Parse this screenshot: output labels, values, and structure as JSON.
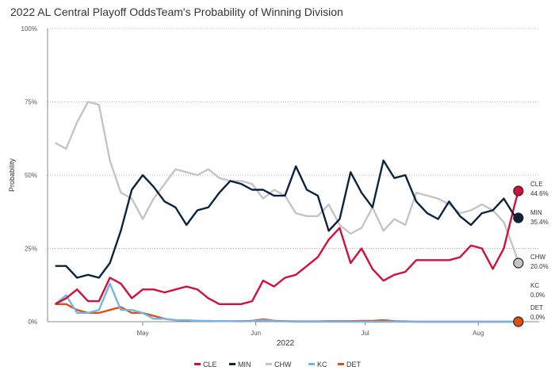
{
  "chart_data": {
    "type": "line",
    "title": "2022 AL Central Playoff OddsTeam's Probability of Winning Division",
    "xlabel": "2022",
    "ylabel": "Probability",
    "ylim": [
      0,
      100
    ],
    "yticks": [
      "0%",
      "25%",
      "50%",
      "75%",
      "100%"
    ],
    "ytick_values": [
      0,
      25,
      50,
      75,
      100
    ],
    "xticks": [
      {
        "date": "2022-05-01",
        "label": "May"
      },
      {
        "date": "2022-06-01",
        "label": "Jun"
      },
      {
        "date": "2022-07-01",
        "label": "Jul"
      },
      {
        "date": "2022-08-01",
        "label": "Aug"
      }
    ],
    "grid": "horizontal dotted",
    "legend": "bottom",
    "dates": [
      "2022-04-07",
      "2022-04-10",
      "2022-04-13",
      "2022-04-16",
      "2022-04-19",
      "2022-04-22",
      "2022-04-25",
      "2022-04-28",
      "2022-05-01",
      "2022-05-04",
      "2022-05-07",
      "2022-05-10",
      "2022-05-13",
      "2022-05-16",
      "2022-05-19",
      "2022-05-22",
      "2022-05-25",
      "2022-05-28",
      "2022-05-31",
      "2022-06-03",
      "2022-06-06",
      "2022-06-09",
      "2022-06-12",
      "2022-06-15",
      "2022-06-18",
      "2022-06-21",
      "2022-06-24",
      "2022-06-27",
      "2022-06-30",
      "2022-07-03",
      "2022-07-06",
      "2022-07-09",
      "2022-07-12",
      "2022-07-15",
      "2022-07-18",
      "2022-07-21",
      "2022-07-24",
      "2022-07-27",
      "2022-07-30",
      "2022-08-02",
      "2022-08-05",
      "2022-08-08",
      "2022-08-11",
      "2022-08-12"
    ],
    "series": [
      {
        "name": "CLE",
        "color": "#d0103a",
        "final_label": "44.6%",
        "values": [
          6,
          8,
          11,
          7,
          7,
          15,
          13,
          8,
          11,
          11,
          10,
          11,
          12,
          11,
          8,
          6,
          6,
          6,
          7,
          14,
          12,
          15,
          16,
          19,
          22,
          28,
          32,
          20,
          25,
          18,
          14,
          16,
          17,
          21,
          21,
          21,
          21,
          22,
          26,
          25,
          18,
          25,
          40,
          44.6
        ]
      },
      {
        "name": "MIN",
        "color": "#0c2340",
        "final_label": "35.4%",
        "values": [
          19,
          19,
          15,
          16,
          15,
          20,
          31,
          45,
          50,
          46,
          41,
          39,
          33,
          38,
          39,
          44,
          48,
          47,
          45,
          45,
          43,
          43,
          53,
          45,
          43,
          31,
          35,
          51,
          44,
          39,
          55,
          49,
          50,
          41,
          37,
          35,
          41,
          36,
          33,
          37,
          38,
          42,
          36,
          35.4
        ]
      },
      {
        "name": "CHW",
        "color": "#c4c4c4",
        "final_label": "20.0%",
        "values": [
          61,
          59,
          68,
          75,
          74,
          55,
          44,
          42,
          35,
          42,
          47,
          52,
          51,
          50,
          52,
          49,
          48,
          48,
          47,
          42,
          45,
          43,
          37,
          36,
          36,
          40,
          33,
          30,
          32,
          39,
          31,
          35,
          33,
          44,
          43,
          42,
          40,
          37,
          38,
          40,
          38,
          34,
          24,
          20.0
        ]
      },
      {
        "name": "KC",
        "color": "#74b4e8",
        "final_label": "0.0%",
        "values": [
          6,
          9,
          3,
          3,
          4,
          13,
          4,
          4,
          3,
          1,
          1,
          0.5,
          0.5,
          0.3,
          0.3,
          0.2,
          0.2,
          0.1,
          0.2,
          0.5,
          0.1,
          0.1,
          0,
          0,
          0,
          0,
          0,
          0,
          0,
          0,
          0,
          0,
          0,
          0,
          0,
          0,
          0,
          0,
          0,
          0,
          0,
          0,
          0,
          0
        ]
      },
      {
        "name": "DET",
        "color": "#e04e0f",
        "final_label": "0.0%",
        "values": [
          6,
          6,
          4,
          3,
          3,
          4,
          5,
          3,
          3,
          2,
          1,
          0.5,
          0.4,
          0.3,
          0.2,
          0.2,
          0.2,
          0.2,
          0.3,
          0.8,
          0.3,
          0.2,
          0.1,
          0.1,
          0.1,
          0.2,
          0.2,
          0.2,
          0.3,
          0.3,
          0.5,
          0.2,
          0.1,
          0,
          0,
          0,
          0,
          0,
          0,
          0,
          0,
          0,
          0,
          0
        ]
      }
    ]
  }
}
